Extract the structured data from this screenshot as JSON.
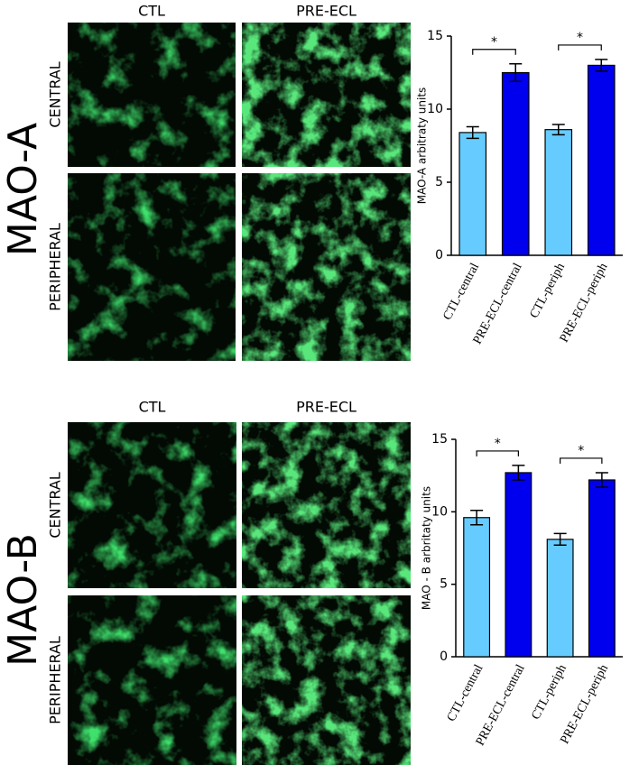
{
  "chart_data": [
    {
      "type": "bar",
      "ylabel": "MAO-A arbitraty units",
      "categories": [
        "CTL-central",
        "PRE-ECL-central",
        "CTL-periph",
        "PRE-ECL-periph"
      ],
      "values": [
        8.4,
        12.5,
        8.6,
        13.0
      ],
      "errors": [
        0.4,
        0.6,
        0.35,
        0.4
      ],
      "colors": [
        "#66ccff",
        "#0000ee",
        "#66ccff",
        "#0000ee"
      ],
      "ylim": [
        0,
        15
      ],
      "yticks": [
        0,
        5,
        10,
        15
      ],
      "annotations": [
        "*",
        "*"
      ]
    },
    {
      "type": "bar",
      "ylabel": "MAO - B arbritaty units",
      "categories": [
        "CTL-central",
        "PRE-ECL-central",
        "CTL-periph",
        "PRE-ECL-periph"
      ],
      "values": [
        9.6,
        12.7,
        8.1,
        12.2
      ],
      "errors": [
        0.5,
        0.5,
        0.4,
        0.5
      ],
      "colors": [
        "#66ccff",
        "#0000ee",
        "#66ccff",
        "#0000ee"
      ],
      "ylim": [
        0,
        15
      ],
      "yticks": [
        0,
        5,
        10,
        15
      ],
      "annotations": [
        "*",
        "*"
      ]
    }
  ],
  "panels": [
    {
      "title": "MAO-A",
      "columns": [
        "CTL",
        "PRE-ECL"
      ],
      "rows": [
        "CENTRAL",
        "PERIPHERAL"
      ]
    },
    {
      "title": "MAO-B",
      "columns": [
        "CTL",
        "PRE-ECL"
      ],
      "rows": [
        "CENTRAL",
        "PERIPHERAL"
      ]
    }
  ]
}
